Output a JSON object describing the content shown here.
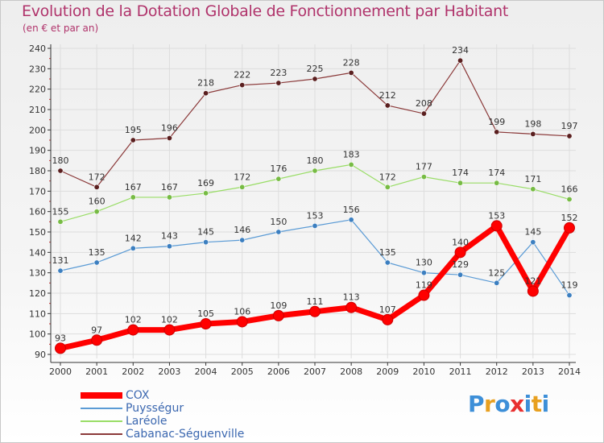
{
  "header": {
    "title": "Evolution de la Dotation Globale de Fonctionnement par Habitant",
    "subtitle": "(en € et par an)"
  },
  "logo": {
    "text": "Proxiti",
    "letters": [
      "P",
      "r",
      "o",
      "x",
      "i",
      "t",
      "i"
    ],
    "colors": [
      "#3d8fd8",
      "#e8a020",
      "#3d8fd8",
      "#e83030",
      "#3d8fd8",
      "#e8a020",
      "#3d8fd8"
    ]
  },
  "chart_data": {
    "type": "line",
    "title": "Evolution de la Dotation Globale de Fonctionnement par Habitant",
    "subtitle": "(en € et par an)",
    "xlabel": "",
    "ylabel": "",
    "ylim": [
      90,
      240
    ],
    "yticks": [
      90,
      100,
      110,
      120,
      130,
      140,
      150,
      160,
      170,
      180,
      190,
      200,
      210,
      220,
      230,
      240
    ],
    "grid": true,
    "categories": [
      "2000",
      "2001",
      "2002",
      "2003",
      "2004",
      "2005",
      "2006",
      "2007",
      "2008",
      "2009",
      "2010",
      "2011",
      "2012",
      "2013",
      "2014"
    ],
    "series": [
      {
        "name": "COX",
        "color": "#ff0000",
        "marker": "#ff0000",
        "width": "thick",
        "values": [
          93,
          97,
          102,
          102,
          105,
          106,
          109,
          111,
          113,
          107,
          119,
          140,
          153,
          121,
          152
        ],
        "labels": [
          "93",
          "97",
          "102",
          "102",
          "105",
          "106",
          "109",
          "111",
          "113",
          "107",
          "119",
          "140",
          "153",
          "121",
          "152"
        ]
      },
      {
        "name": "Puysségur",
        "color": "#5b9bd5",
        "marker": "#3c7fc0",
        "width": "thin",
        "values": [
          131,
          135,
          142,
          143,
          145,
          146,
          150,
          153,
          156,
          135,
          130,
          129,
          125,
          145,
          119
        ],
        "labels": [
          "131",
          "135",
          "142",
          "143",
          "145",
          "146",
          "150",
          "153",
          "156",
          "135",
          "130",
          "129",
          "125",
          "145",
          "119"
        ]
      },
      {
        "name": "Laréole",
        "color": "#99dd66",
        "marker": "#77bb44",
        "width": "thin",
        "values": [
          155,
          160,
          167,
          167,
          169,
          172,
          176,
          180,
          183,
          172,
          177,
          174,
          174,
          171,
          166
        ],
        "labels": [
          "155",
          "160",
          "167",
          "167",
          "169",
          "172",
          "176",
          "180",
          "183",
          "172",
          "177",
          "174",
          "174",
          "171",
          "166"
        ]
      },
      {
        "name": "Cabanac-Séguenville",
        "color": "#8b3a3a",
        "marker": "#5a1f1f",
        "width": "thin",
        "values": [
          180,
          172,
          195,
          196,
          218,
          222,
          223,
          225,
          228,
          212,
          208,
          234,
          199,
          198,
          197
        ],
        "labels": [
          "180",
          "172",
          "195",
          "196",
          "218",
          "222",
          "223",
          "225",
          "228",
          "212",
          "208",
          "234",
          "199",
          "198",
          "197"
        ]
      }
    ],
    "legend": "bottom-left"
  }
}
